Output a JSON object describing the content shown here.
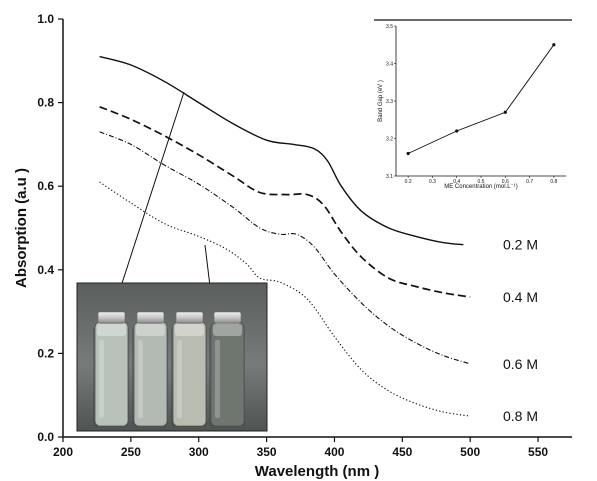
{
  "chart_data": [
    {
      "type": "line",
      "xlabel": "Wavelength (nm )",
      "ylabel": "Absorption (a.u )",
      "xlim": [
        200,
        575
      ],
      "ylim": [
        0.0,
        1.0
      ],
      "xticks": [
        "200",
        "250",
        "300",
        "350",
        "400",
        "450",
        "500",
        "550"
      ],
      "yticks": [
        "0.0",
        "0.2",
        "0.4",
        "0.6",
        "0.8",
        "1.0"
      ],
      "grid": false,
      "series": [
        {
          "name": "0.2 M",
          "style": "solid",
          "x": [
            227,
            250,
            275,
            300,
            325,
            350,
            370,
            385,
            395,
            405,
            420,
            440,
            460,
            480,
            495
          ],
          "y": [
            0.91,
            0.89,
            0.85,
            0.8,
            0.75,
            0.71,
            0.7,
            0.69,
            0.66,
            0.6,
            0.54,
            0.5,
            0.48,
            0.465,
            0.46
          ]
        },
        {
          "name": "0.4 M",
          "style": "dashed",
          "x": [
            227,
            250,
            275,
            300,
            325,
            345,
            365,
            380,
            392,
            405,
            420,
            440,
            460,
            480,
            500
          ],
          "y": [
            0.79,
            0.76,
            0.72,
            0.675,
            0.625,
            0.585,
            0.58,
            0.58,
            0.555,
            0.49,
            0.43,
            0.38,
            0.36,
            0.345,
            0.335
          ]
        },
        {
          "name": "0.6 M",
          "style": "dash-dot",
          "x": [
            227,
            250,
            275,
            300,
            325,
            345,
            360,
            372,
            385,
            400,
            420,
            440,
            460,
            480,
            500
          ],
          "y": [
            0.73,
            0.7,
            0.65,
            0.605,
            0.55,
            0.5,
            0.485,
            0.485,
            0.455,
            0.39,
            0.32,
            0.265,
            0.225,
            0.195,
            0.175
          ]
        },
        {
          "name": "0.8 M",
          "style": "dotted",
          "x": [
            227,
            250,
            275,
            300,
            320,
            335,
            345,
            360,
            380,
            400,
            420,
            440,
            460,
            480,
            500
          ],
          "y": [
            0.61,
            0.56,
            0.51,
            0.48,
            0.45,
            0.415,
            0.38,
            0.37,
            0.33,
            0.24,
            0.16,
            0.11,
            0.08,
            0.06,
            0.05
          ]
        }
      ]
    },
    {
      "type": "line",
      "xlabel": "ME Concentration (mol.L⁻¹)",
      "ylabel": "Band Gap (eV )",
      "xlim": [
        0.15,
        0.85
      ],
      "ylim": [
        3.1,
        3.5
      ],
      "xticks": [
        "0.2",
        "0.3",
        "0.4",
        "0.5",
        "0.6",
        "0.7",
        "0.8"
      ],
      "yticks": [
        "3.1",
        "3.2",
        "3.3",
        "3.4",
        "3.5"
      ],
      "grid": false,
      "series": [
        {
          "x": [
            0.2,
            0.4,
            0.6,
            0.8
          ],
          "y": [
            3.16,
            3.22,
            3.27,
            3.45
          ]
        }
      ]
    }
  ],
  "photo_inset": {
    "bottles": [
      {
        "liquid_color": "#b7c2ba"
      },
      {
        "liquid_color": "#b3bab3"
      },
      {
        "liquid_color": "#b9bcb1"
      },
      {
        "liquid_color": "#6f7670"
      }
    ]
  }
}
